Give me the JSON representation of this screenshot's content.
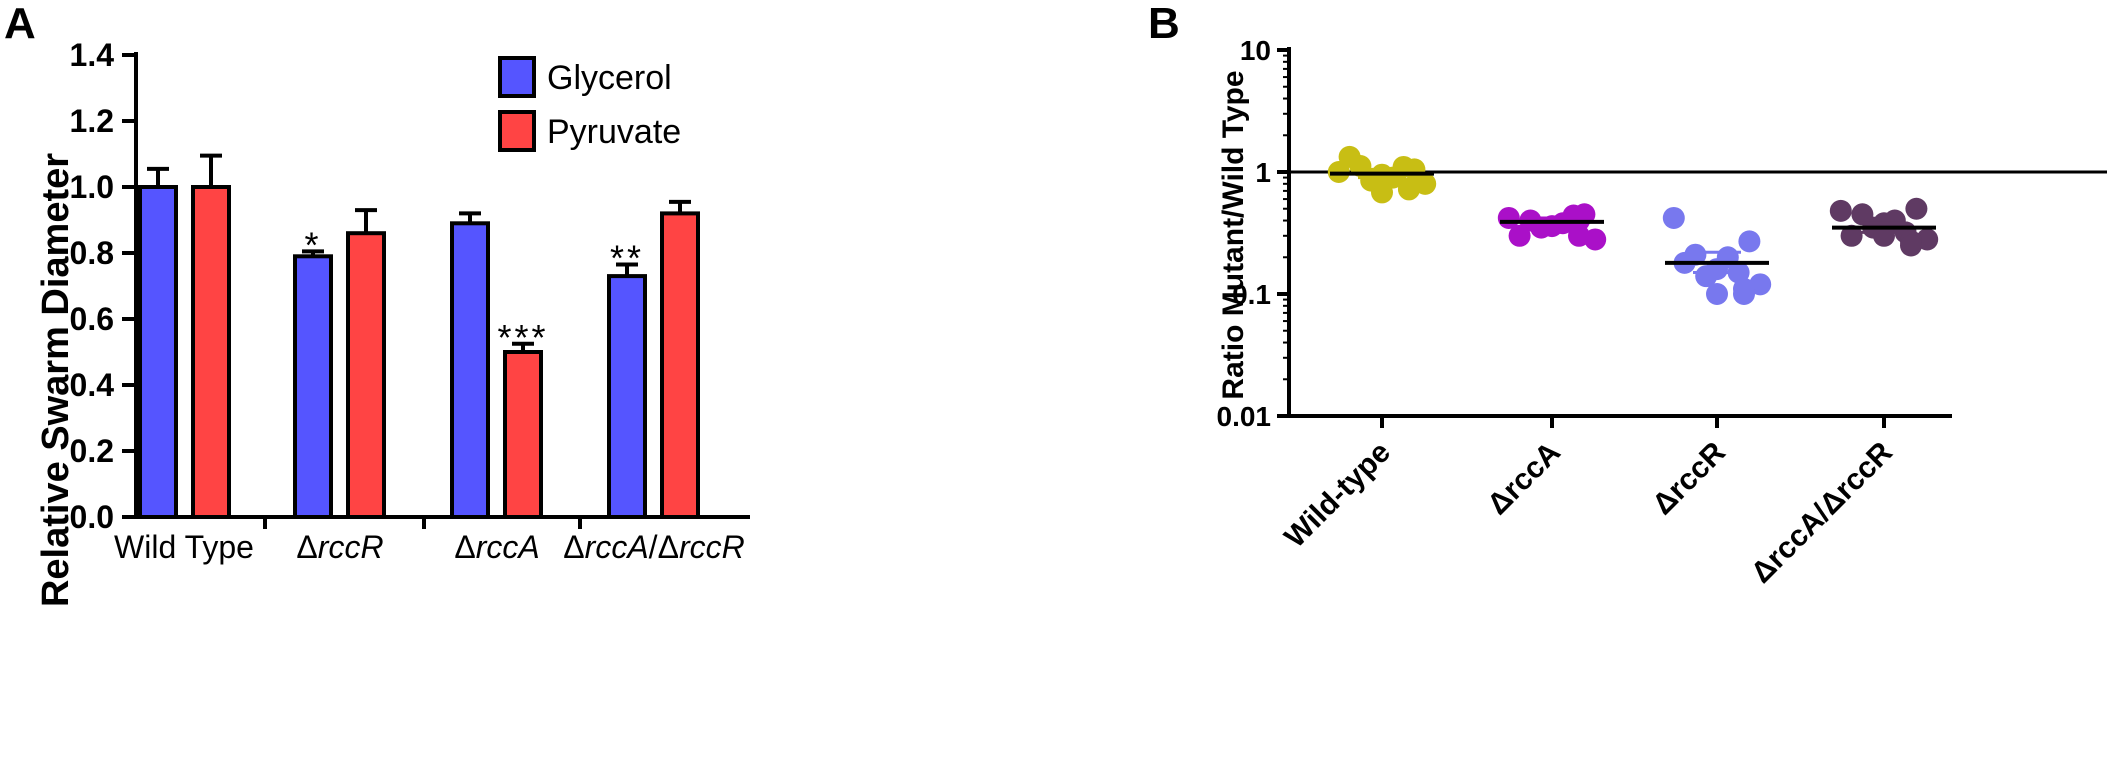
{
  "panels": {
    "a": "A",
    "b": "B"
  },
  "chart_data": [
    {
      "type": "bar",
      "panel": "A",
      "ylabel": "Relative Swarm  Diameter",
      "xlabel": "",
      "ylim": [
        0,
        1.4
      ],
      "yticks": [
        "0.0",
        "0.2",
        "0.4",
        "0.6",
        "0.8",
        "1.0",
        "1.2",
        "1.4"
      ],
      "categories": [
        "Wild Type",
        "ΔrccR",
        "ΔrccA",
        "ΔrccA/ΔrccR"
      ],
      "legend": {
        "placement": "top-right"
      },
      "series": [
        {
          "name": "Glycerol",
          "color": "#5555ff",
          "values": [
            1.0,
            0.79,
            0.89,
            0.73
          ],
          "errors": [
            0.055,
            0.015,
            0.03,
            0.035
          ]
        },
        {
          "name": "Pyruvate",
          "color": "#ff4444",
          "values": [
            1.0,
            0.86,
            0.5,
            0.92
          ],
          "errors": [
            0.095,
            0.07,
            0.025,
            0.035
          ]
        }
      ],
      "annotations": [
        {
          "category": 1,
          "series": 0,
          "text": "*"
        },
        {
          "category": 2,
          "series": 1,
          "text": "***"
        },
        {
          "category": 3,
          "series": 0,
          "text": "**"
        }
      ]
    },
    {
      "type": "scatter",
      "panel": "B",
      "ylabel": "Ratio Mutant/Wild Type",
      "xlabel": "",
      "yscale": "log",
      "ylim": [
        0.01,
        10
      ],
      "yticks": [
        "0.01",
        "0.1",
        "1",
        "10"
      ],
      "reference_line": 1,
      "categories": [
        "Wild-type",
        "ΔrccA",
        "ΔrccR",
        "ΔrccA/ΔrccR"
      ],
      "groups": [
        {
          "name": "Wild-type",
          "color": "#c8be14",
          "mean": 0.97,
          "sem_low": 0.9,
          "sem_high": 1.05,
          "values": [
            1.0,
            1.05,
            1.12,
            0.9,
            0.95,
            0.85,
            1.1,
            1.33,
            0.8,
            0.72,
            0.73,
            0.68
          ]
        },
        {
          "name": "ΔrccA",
          "color": "#aa10c8",
          "mean": 0.39,
          "sem_low": 0.36,
          "sem_high": 0.42,
          "values": [
            0.42,
            0.45,
            0.4,
            0.38,
            0.36,
            0.35,
            0.44,
            0.3,
            0.28,
            0.3,
            0.4
          ]
        },
        {
          "name": "ΔrccR",
          "color": "#7878ee",
          "mean": 0.18,
          "sem_low": 0.15,
          "sem_high": 0.22,
          "values": [
            0.42,
            0.27,
            0.21,
            0.2,
            0.16,
            0.14,
            0.15,
            0.18,
            0.12,
            0.11,
            0.1,
            0.1
          ]
        },
        {
          "name": "ΔrccA/ΔrccR",
          "color": "#5f3a63",
          "mean": 0.35,
          "sem_low": 0.32,
          "sem_high": 0.38,
          "values": [
            0.48,
            0.5,
            0.45,
            0.4,
            0.38,
            0.35,
            0.32,
            0.3,
            0.28,
            0.27,
            0.25,
            0.3
          ]
        }
      ]
    }
  ]
}
